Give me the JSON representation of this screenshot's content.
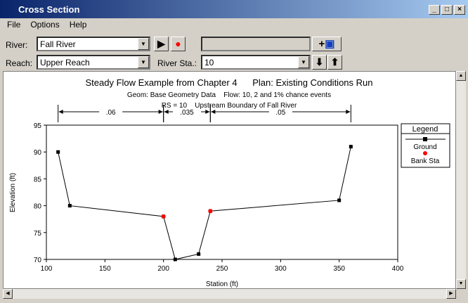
{
  "window": {
    "title": "Cross Section",
    "min": "_",
    "max": "□",
    "close": "×"
  },
  "menu": [
    "File",
    "Options",
    "Help"
  ],
  "toolbar": {
    "river_label": "River:",
    "river_value": "Fall River",
    "reach_label": "Reach:",
    "reach_value": "Upper Reach",
    "sta_label": "River Sta.:",
    "sta_value": "10",
    "text_box": ""
  },
  "chart_data": {
    "type": "line",
    "title": "Steady Flow Example from Chapter 4      Plan: Existing Conditions Run",
    "subtitle1": "Geom: Base Geometry Data    Flow: 10, 2 and 1% chance events",
    "subtitle2": "RS = 10    Upstream Boundary of Fall River",
    "xlabel": "Station (ft)",
    "ylabel": "Elevation (ft)",
    "xlim": [
      100,
      400
    ],
    "ylim": [
      70,
      95
    ],
    "xticks": [
      100,
      150,
      200,
      250,
      300,
      350,
      400
    ],
    "yticks": [
      70,
      75,
      80,
      85,
      90,
      95
    ],
    "series": [
      {
        "name": "Ground",
        "x": [
          110,
          120,
          200,
          210,
          230,
          240,
          350,
          360
        ],
        "y": [
          90,
          80,
          78,
          70,
          71,
          79,
          81,
          91
        ],
        "color": "#000000"
      },
      {
        "name": "Bank Sta",
        "x": [
          200,
          240
        ],
        "y": [
          78,
          79
        ],
        "color": "#ff0000"
      }
    ],
    "mannings_n": [
      {
        "from": 110,
        "to": 200,
        "value": ".06"
      },
      {
        "from": 200,
        "to": 240,
        "value": ".035"
      },
      {
        "from": 240,
        "to": 360,
        "value": ".05"
      }
    ],
    "legend": {
      "title": "Legend",
      "position": "right"
    }
  }
}
